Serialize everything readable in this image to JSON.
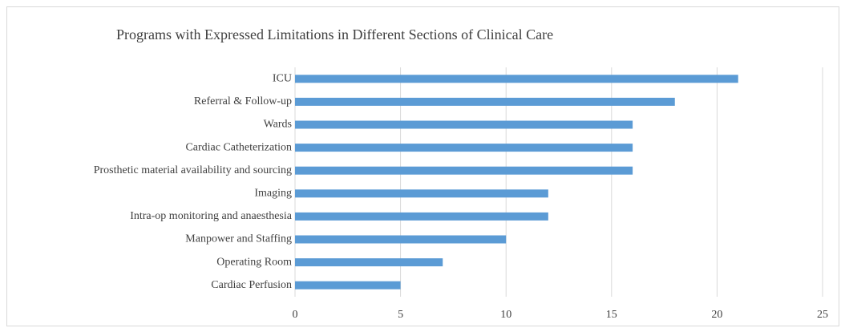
{
  "chart_data": {
    "type": "bar",
    "orientation": "horizontal",
    "title": "Programs with Expressed Limitations in Different Sections of Clinical Care",
    "categories": [
      "ICU",
      "Referral & Follow-up",
      "Wards",
      "Cardiac Catheterization",
      "Prosthetic material availability and sourcing",
      "Imaging",
      "Intra-op monitoring and anaesthesia",
      "Manpower and Staffing",
      "Operating Room",
      "Cardiac Perfusion"
    ],
    "values": [
      21,
      18,
      16,
      16,
      16,
      12,
      12,
      10,
      7,
      5
    ],
    "color": "#5b9bd5",
    "xlim": [
      0,
      25
    ],
    "xticks": [
      0,
      5,
      10,
      15,
      20,
      25
    ],
    "grid": true
  }
}
